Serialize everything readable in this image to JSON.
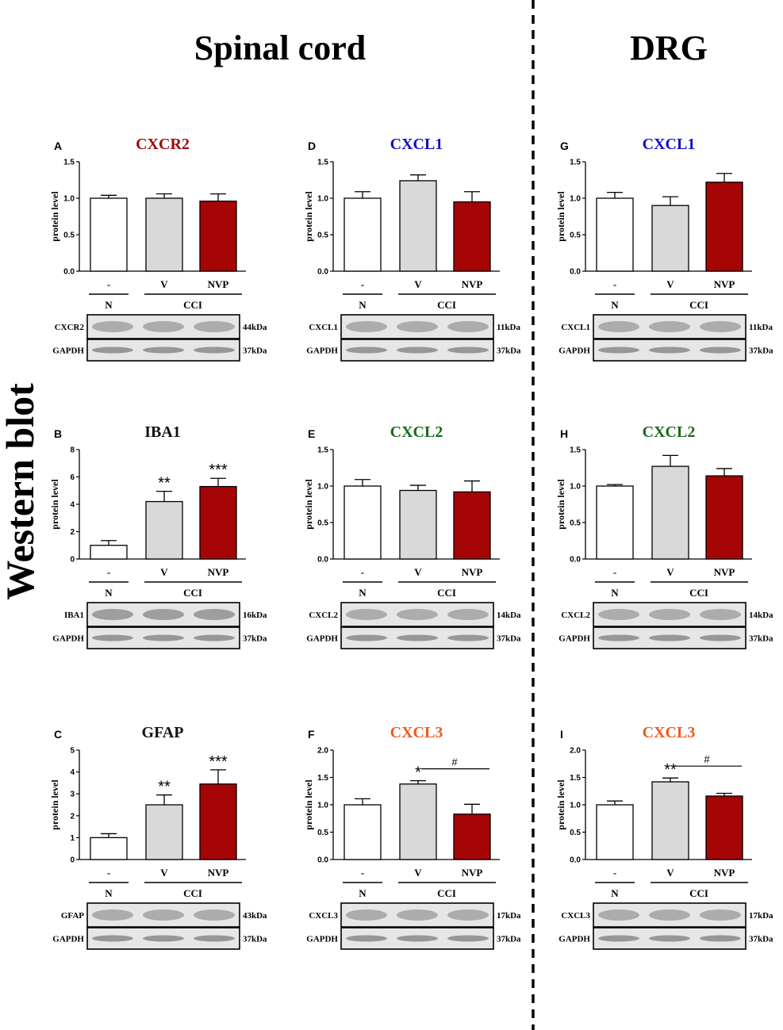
{
  "headers": {
    "spinal": "Spinal cord",
    "drg": "DRG",
    "side": "Western blot"
  },
  "colors": {
    "white_bar": "#ffffff",
    "gray_bar": "#d9d9d9",
    "red_bar": "#a50505",
    "title_red": "#a00a0a",
    "title_blue": "#1010c8",
    "title_green": "#1a6b1a",
    "title_orange": "#f05a1e",
    "title_black": "#111111"
  },
  "common": {
    "ylabel": "protein level",
    "categories": [
      "-",
      "V",
      "NVP"
    ],
    "group_n": "N",
    "group_cci": "CCI",
    "loading_control": "GAPDH",
    "loading_kda": "37kDa"
  },
  "chart_data": [
    {
      "type": "bar",
      "letter": "A",
      "title": "CXCR2",
      "title_color": "title_red",
      "ylim": [
        0,
        1.5
      ],
      "yticks": [
        "0.0",
        "0.5",
        "1.0",
        "1.5"
      ],
      "values": [
        1.0,
        1.0,
        0.96
      ],
      "errors": [
        0.04,
        0.06,
        0.1
      ],
      "stars": [
        "",
        "",
        ""
      ],
      "hash": false,
      "blot_label": "CXCR2",
      "blot_kda": "44kDa"
    },
    {
      "type": "bar",
      "letter": "B",
      "title": "IBA1",
      "title_color": "title_black",
      "ylim": [
        0,
        8
      ],
      "yticks": [
        "0",
        "2",
        "4",
        "6",
        "8"
      ],
      "values": [
        1.0,
        4.2,
        5.3
      ],
      "errors": [
        0.35,
        0.75,
        0.6
      ],
      "stars": [
        "",
        "**",
        "***"
      ],
      "hash": false,
      "blot_label": "IBA1",
      "blot_kda": "16kDa"
    },
    {
      "type": "bar",
      "letter": "C",
      "title": "GFAP",
      "title_color": "title_black",
      "ylim": [
        0,
        5
      ],
      "yticks": [
        "0",
        "1",
        "2",
        "3",
        "4",
        "5"
      ],
      "values": [
        1.0,
        2.5,
        3.45
      ],
      "errors": [
        0.18,
        0.45,
        0.65
      ],
      "stars": [
        "",
        "**",
        "***"
      ],
      "hash": false,
      "blot_label": "GFAP",
      "blot_kda": "43kDa"
    },
    {
      "type": "bar",
      "letter": "D",
      "title": "CXCL1",
      "title_color": "title_blue",
      "ylim": [
        0,
        1.5
      ],
      "yticks": [
        "0.0",
        "0.5",
        "1.0",
        "1.5"
      ],
      "values": [
        1.0,
        1.24,
        0.95
      ],
      "errors": [
        0.09,
        0.08,
        0.14
      ],
      "stars": [
        "",
        "",
        ""
      ],
      "hash": false,
      "blot_label": "CXCL1",
      "blot_kda": "11kDa"
    },
    {
      "type": "bar",
      "letter": "E",
      "title": "CXCL2",
      "title_color": "title_green",
      "ylim": [
        0,
        1.5
      ],
      "yticks": [
        "0.0",
        "0.5",
        "1.0",
        "1.5"
      ],
      "values": [
        1.0,
        0.94,
        0.92
      ],
      "errors": [
        0.09,
        0.07,
        0.15
      ],
      "stars": [
        "",
        "",
        ""
      ],
      "hash": false,
      "blot_label": "CXCL2",
      "blot_kda": "14kDa"
    },
    {
      "type": "bar",
      "letter": "F",
      "title": "CXCL3",
      "title_color": "title_orange",
      "ylim": [
        0,
        2.0
      ],
      "yticks": [
        "0.0",
        "0.5",
        "1.0",
        "1.5",
        "2.0"
      ],
      "values": [
        1.0,
        1.38,
        0.83
      ],
      "errors": [
        0.11,
        0.06,
        0.18
      ],
      "stars": [
        "",
        "*",
        ""
      ],
      "hash": true,
      "hash_label": "#",
      "blot_label": "CXCL3",
      "blot_kda": "17kDa"
    },
    {
      "type": "bar",
      "letter": "G",
      "title": "CXCL1",
      "title_color": "title_blue",
      "ylim": [
        0,
        1.5
      ],
      "yticks": [
        "0.0",
        "0.5",
        "1.0",
        "1.5"
      ],
      "values": [
        1.0,
        0.9,
        1.22
      ],
      "errors": [
        0.08,
        0.12,
        0.12
      ],
      "stars": [
        "",
        "",
        ""
      ],
      "hash": false,
      "blot_label": "CXCL1",
      "blot_kda": "11kDa"
    },
    {
      "type": "bar",
      "letter": "H",
      "title": "CXCL2",
      "title_color": "title_green",
      "ylim": [
        0,
        1.5
      ],
      "yticks": [
        "0.0",
        "0.5",
        "1.0",
        "1.5"
      ],
      "values": [
        1.0,
        1.27,
        1.14
      ],
      "errors": [
        0.02,
        0.15,
        0.1
      ],
      "stars": [
        "",
        "",
        ""
      ],
      "hash": false,
      "blot_label": "CXCL2",
      "blot_kda": "14kDa"
    },
    {
      "type": "bar",
      "letter": "I",
      "title": "CXCL3",
      "title_color": "title_orange",
      "ylim": [
        0,
        2.0
      ],
      "yticks": [
        "0.0",
        "0.5",
        "1.0",
        "1.5",
        "2.0"
      ],
      "values": [
        1.0,
        1.42,
        1.16
      ],
      "errors": [
        0.07,
        0.07,
        0.05
      ],
      "stars": [
        "",
        "**",
        ""
      ],
      "hash": true,
      "hash_label": "#",
      "blot_label": "CXCL3",
      "blot_kda": "17kDa"
    }
  ]
}
